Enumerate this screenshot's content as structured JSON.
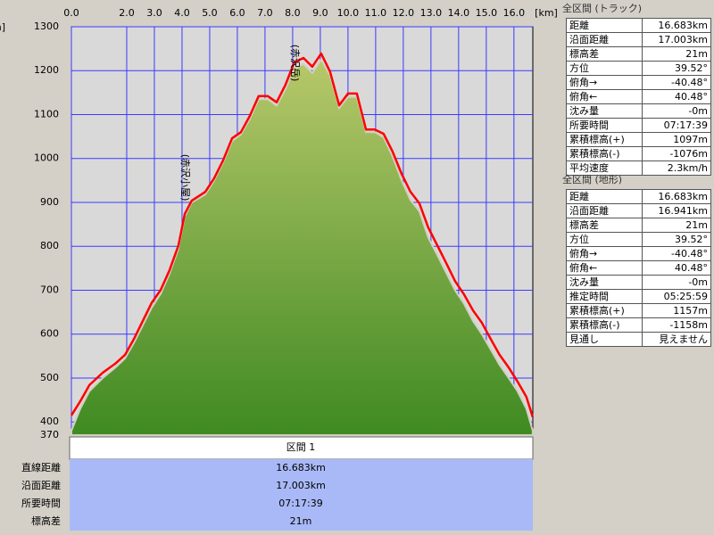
{
  "chart_data": {
    "type": "area",
    "y_axis_label": "m]",
    "x_axis_label": "[km]",
    "x": [
      0,
      0.32,
      0.65,
      1.13,
      1.61,
      1.94,
      2.26,
      2.58,
      2.9,
      3.23,
      3.55,
      3.87,
      4.1,
      4.35,
      4.84,
      5.16,
      5.48,
      5.81,
      6.13,
      6.45,
      6.77,
      7.1,
      7.42,
      7.74,
      8.06,
      8.39,
      8.71,
      9.03,
      9.35,
      9.68,
      10.0,
      10.32,
      10.65,
      10.97,
      11.29,
      11.61,
      11.94,
      12.26,
      12.58,
      12.9,
      13.23,
      13.55,
      13.87,
      14.19,
      14.52,
      14.84,
      15.16,
      15.48,
      15.81,
      16.13,
      16.45,
      16.68
    ],
    "series": [
      {
        "type": "area",
        "color": "#5a9a2a",
        "values": [
          380,
          430,
          470,
          500,
          525,
          545,
          580,
          620,
          660,
          692,
          738,
          795,
          868,
          900,
          918,
          950,
          990,
          1040,
          1055,
          1090,
          1135,
          1135,
          1120,
          1158,
          1205,
          1215,
          1195,
          1225,
          1190,
          1115,
          1140,
          1140,
          1060,
          1060,
          1048,
          1005,
          950,
          905,
          880,
          820,
          780,
          740,
          700,
          670,
          630,
          600,
          565,
          530,
          500,
          470,
          430,
          380
        ]
      },
      {
        "type": "line",
        "color": "#ff0000",
        "values": [
          415,
          447,
          484,
          512,
          534,
          553,
          589,
          630,
          671,
          701,
          746,
          802,
          874,
          904,
          924,
          955,
          995,
          1046,
          1060,
          1097,
          1142,
          1142,
          1128,
          1168,
          1219,
          1229,
          1209,
          1239,
          1198,
          1121,
          1148,
          1148,
          1066,
          1066,
          1056,
          1016,
          965,
          924,
          898,
          843,
          802,
          762,
          721,
          691,
          654,
          626,
          589,
          553,
          524,
          492,
          457,
          411
        ]
      }
    ],
    "annotations": [
      {
        "text": "(赤沢小屋)",
        "x": 4.1,
        "y": 1010
      },
      {
        "text": "(赤沢岳)",
        "x": 8.06,
        "y": 1260
      }
    ],
    "xlim": [
      0,
      16.683
    ],
    "ylim": [
      370,
      1300
    ],
    "xticks": [
      {
        "value": 0,
        "label": "0.0"
      },
      {
        "value": 2,
        "label": "2.0"
      },
      {
        "value": 3,
        "label": "3.0"
      },
      {
        "value": 4,
        "label": "4.0"
      },
      {
        "value": 5,
        "label": "5.0"
      },
      {
        "value": 6,
        "label": "6.0"
      },
      {
        "value": 7,
        "label": "7.0"
      },
      {
        "value": 8,
        "label": "8.0"
      },
      {
        "value": 9,
        "label": "9.0"
      },
      {
        "value": 10,
        "label": "10.0"
      },
      {
        "value": 11,
        "label": "11.0"
      },
      {
        "value": 12,
        "label": "12.0"
      },
      {
        "value": 13,
        "label": "13.0"
      },
      {
        "value": 14,
        "label": "14.0"
      },
      {
        "value": 15,
        "label": "15.0"
      },
      {
        "value": 16,
        "label": "16.0"
      }
    ],
    "yticks": [
      370,
      400,
      500,
      600,
      700,
      800,
      900,
      1000,
      1100,
      1200,
      1300
    ],
    "grid": true,
    "grid_color": "#3a3aff"
  },
  "track_summary": {
    "title": "全区間 (トラック)",
    "rows": [
      [
        "距離",
        "16.683km"
      ],
      [
        "沿面距離",
        "17.003km"
      ],
      [
        "標高差",
        "21m"
      ],
      [
        "方位",
        "39.52°"
      ],
      [
        "俯角→",
        "-40.48°"
      ],
      [
        "俯角←",
        "40.48°"
      ],
      [
        "沈み量",
        "-0m"
      ],
      [
        "所要時間",
        "07:17:39"
      ],
      [
        "累積標高(+)",
        "1097m"
      ],
      [
        "累積標高(-)",
        "-1076m"
      ],
      [
        "平均速度",
        "2.3km/h"
      ]
    ]
  },
  "terrain_summary": {
    "title": "全区間 (地形)",
    "rows": [
      [
        "距離",
        "16.683km"
      ],
      [
        "沿面距離",
        "16.941km"
      ],
      [
        "標高差",
        "21m"
      ],
      [
        "方位",
        "39.52°"
      ],
      [
        "俯角→",
        "-40.48°"
      ],
      [
        "俯角←",
        "40.48°"
      ],
      [
        "沈み量",
        "-0m"
      ],
      [
        "推定時間",
        "05:25:59"
      ],
      [
        "累積標高(+)",
        "1157m"
      ],
      [
        "累積標高(-)",
        "-1158m"
      ],
      [
        "見通し",
        "見えません"
      ]
    ]
  },
  "section_table": {
    "header": "区間 1",
    "rows": [
      [
        "直線距離",
        "16.683km"
      ],
      [
        "沿面距離",
        "17.003km"
      ],
      [
        "所要時間",
        "07:17:39"
      ],
      [
        "標高差",
        "21m"
      ]
    ]
  }
}
